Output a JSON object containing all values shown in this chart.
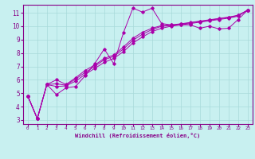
{
  "xlabel": "Windchill (Refroidissement éolien,°C)",
  "bg_color": "#c8f0f0",
  "grid_color": "#a8dada",
  "line_color": "#aa00aa",
  "xlim": [
    -0.5,
    23.5
  ],
  "ylim": [
    2.7,
    11.6
  ],
  "xticks": [
    0,
    1,
    2,
    3,
    4,
    5,
    6,
    7,
    8,
    9,
    10,
    11,
    12,
    13,
    14,
    15,
    16,
    17,
    18,
    19,
    20,
    21,
    22,
    23
  ],
  "yticks": [
    3,
    4,
    5,
    6,
    7,
    8,
    9,
    10,
    11
  ],
  "x_data": [
    0,
    1,
    2,
    3,
    4,
    5,
    6,
    7,
    8,
    9,
    10,
    11,
    12,
    13,
    14,
    15,
    16,
    17,
    18,
    19,
    20,
    21,
    22,
    23
  ],
  "y_main": [
    4.8,
    3.1,
    5.65,
    4.9,
    5.4,
    5.5,
    6.3,
    7.2,
    8.3,
    7.2,
    9.5,
    11.35,
    11.05,
    11.35,
    10.2,
    10.1,
    10.1,
    10.1,
    9.85,
    10.0,
    9.8,
    9.85,
    10.5,
    11.2
  ],
  "y_line2": [
    4.8,
    3.1,
    5.65,
    5.5,
    5.55,
    5.9,
    6.4,
    6.85,
    7.3,
    7.6,
    8.1,
    8.75,
    9.2,
    9.6,
    9.85,
    10.0,
    10.1,
    10.2,
    10.3,
    10.4,
    10.5,
    10.6,
    10.75,
    11.2
  ],
  "y_line3": [
    4.8,
    3.1,
    5.65,
    5.7,
    5.6,
    6.05,
    6.55,
    7.0,
    7.5,
    7.75,
    8.3,
    8.95,
    9.4,
    9.75,
    10.0,
    10.05,
    10.15,
    10.25,
    10.35,
    10.45,
    10.55,
    10.65,
    10.8,
    11.2
  ],
  "y_line4": [
    4.8,
    3.1,
    5.65,
    6.0,
    5.65,
    6.15,
    6.7,
    7.1,
    7.6,
    7.85,
    8.45,
    9.1,
    9.55,
    9.85,
    10.05,
    10.1,
    10.18,
    10.28,
    10.38,
    10.48,
    10.58,
    10.68,
    10.82,
    11.2
  ]
}
